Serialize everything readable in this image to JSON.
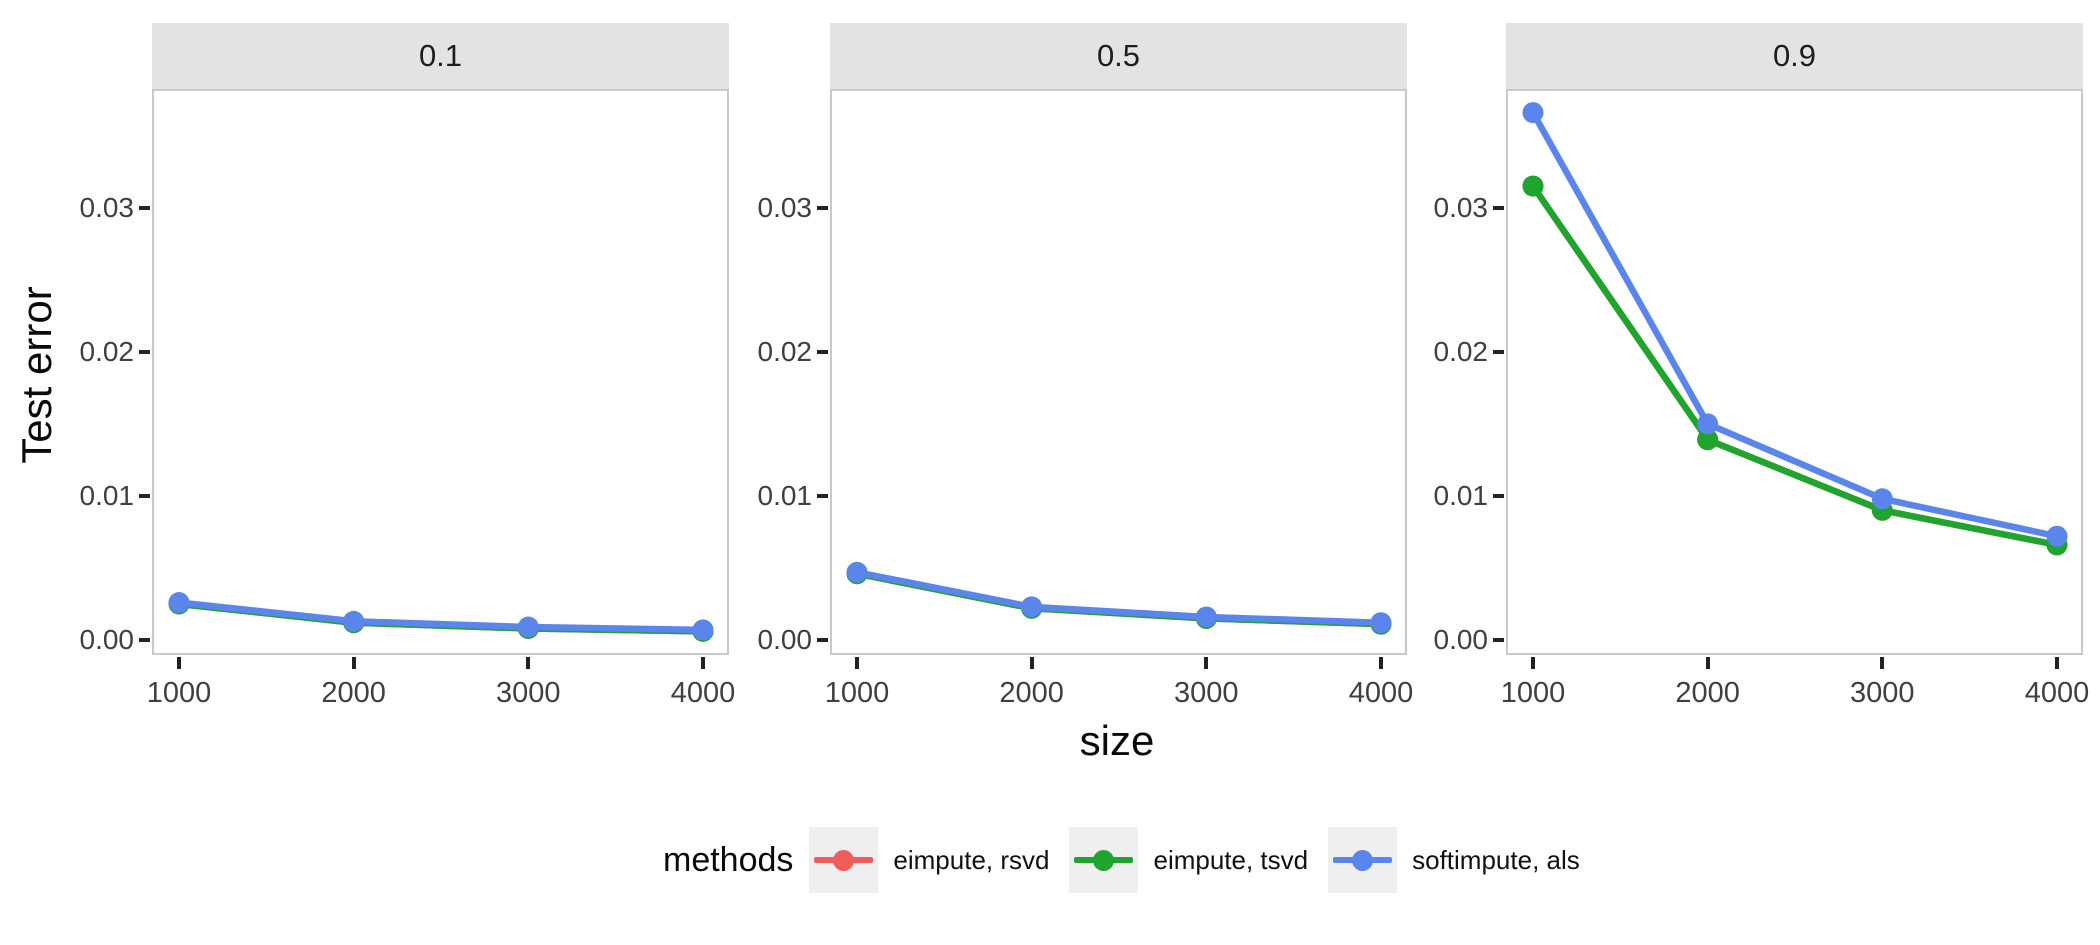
{
  "chart_data": {
    "type": "line",
    "title": "",
    "xlabel": "size",
    "ylabel": "Test error",
    "x": [
      1000,
      2000,
      3000,
      4000
    ],
    "x_tick_labels": [
      "1000",
      "2000",
      "3000",
      "4000"
    ],
    "y_tick_values": [
      0.0,
      0.01,
      0.02,
      0.03
    ],
    "y_tick_labels": [
      "0.00",
      "0.01",
      "0.02",
      "0.03"
    ],
    "ylim": [
      -0.00104,
      0.03824
    ],
    "grid": false,
    "legend": {
      "title": "methods",
      "position": "bottom"
    },
    "methods": [
      {
        "name": "eimpute, rsvd",
        "color": "#F15E5A"
      },
      {
        "name": "eimpute, tsvd",
        "color": "#1FA42D"
      },
      {
        "name": "softimpute, als",
        "color": "#5A86EC"
      }
    ],
    "facets": [
      {
        "title": "0.1",
        "series_values": [
          [
            0.0025,
            0.0012,
            0.0008,
            0.0006
          ],
          [
            0.0025,
            0.0012,
            0.0008,
            0.0006
          ],
          [
            0.0026,
            0.0013,
            0.0009,
            0.0007
          ]
        ]
      },
      {
        "title": "0.5",
        "series_values": [
          [
            0.0046,
            0.0022,
            0.0015,
            0.0011
          ],
          [
            0.0046,
            0.0022,
            0.0015,
            0.0011
          ],
          [
            0.0047,
            0.0023,
            0.0016,
            0.0012
          ]
        ]
      },
      {
        "title": "0.9",
        "series_values": [
          [
            0.0315,
            0.0139,
            0.009,
            0.0066
          ],
          [
            0.0315,
            0.0139,
            0.009,
            0.0066
          ],
          [
            0.0366,
            0.015,
            0.0098,
            0.0072
          ]
        ]
      }
    ]
  },
  "theme": {
    "strip_bg": "#E3E3E3",
    "panel_bg": "#FFFFFF",
    "panel_border": "#C9C9C9",
    "tick_color": "#222222",
    "tick_label_color": "#404040",
    "strip_text_color": "#1E1E1E",
    "title_color": "#0A0A0A",
    "legend_key_bg": "#EFEFEF"
  }
}
